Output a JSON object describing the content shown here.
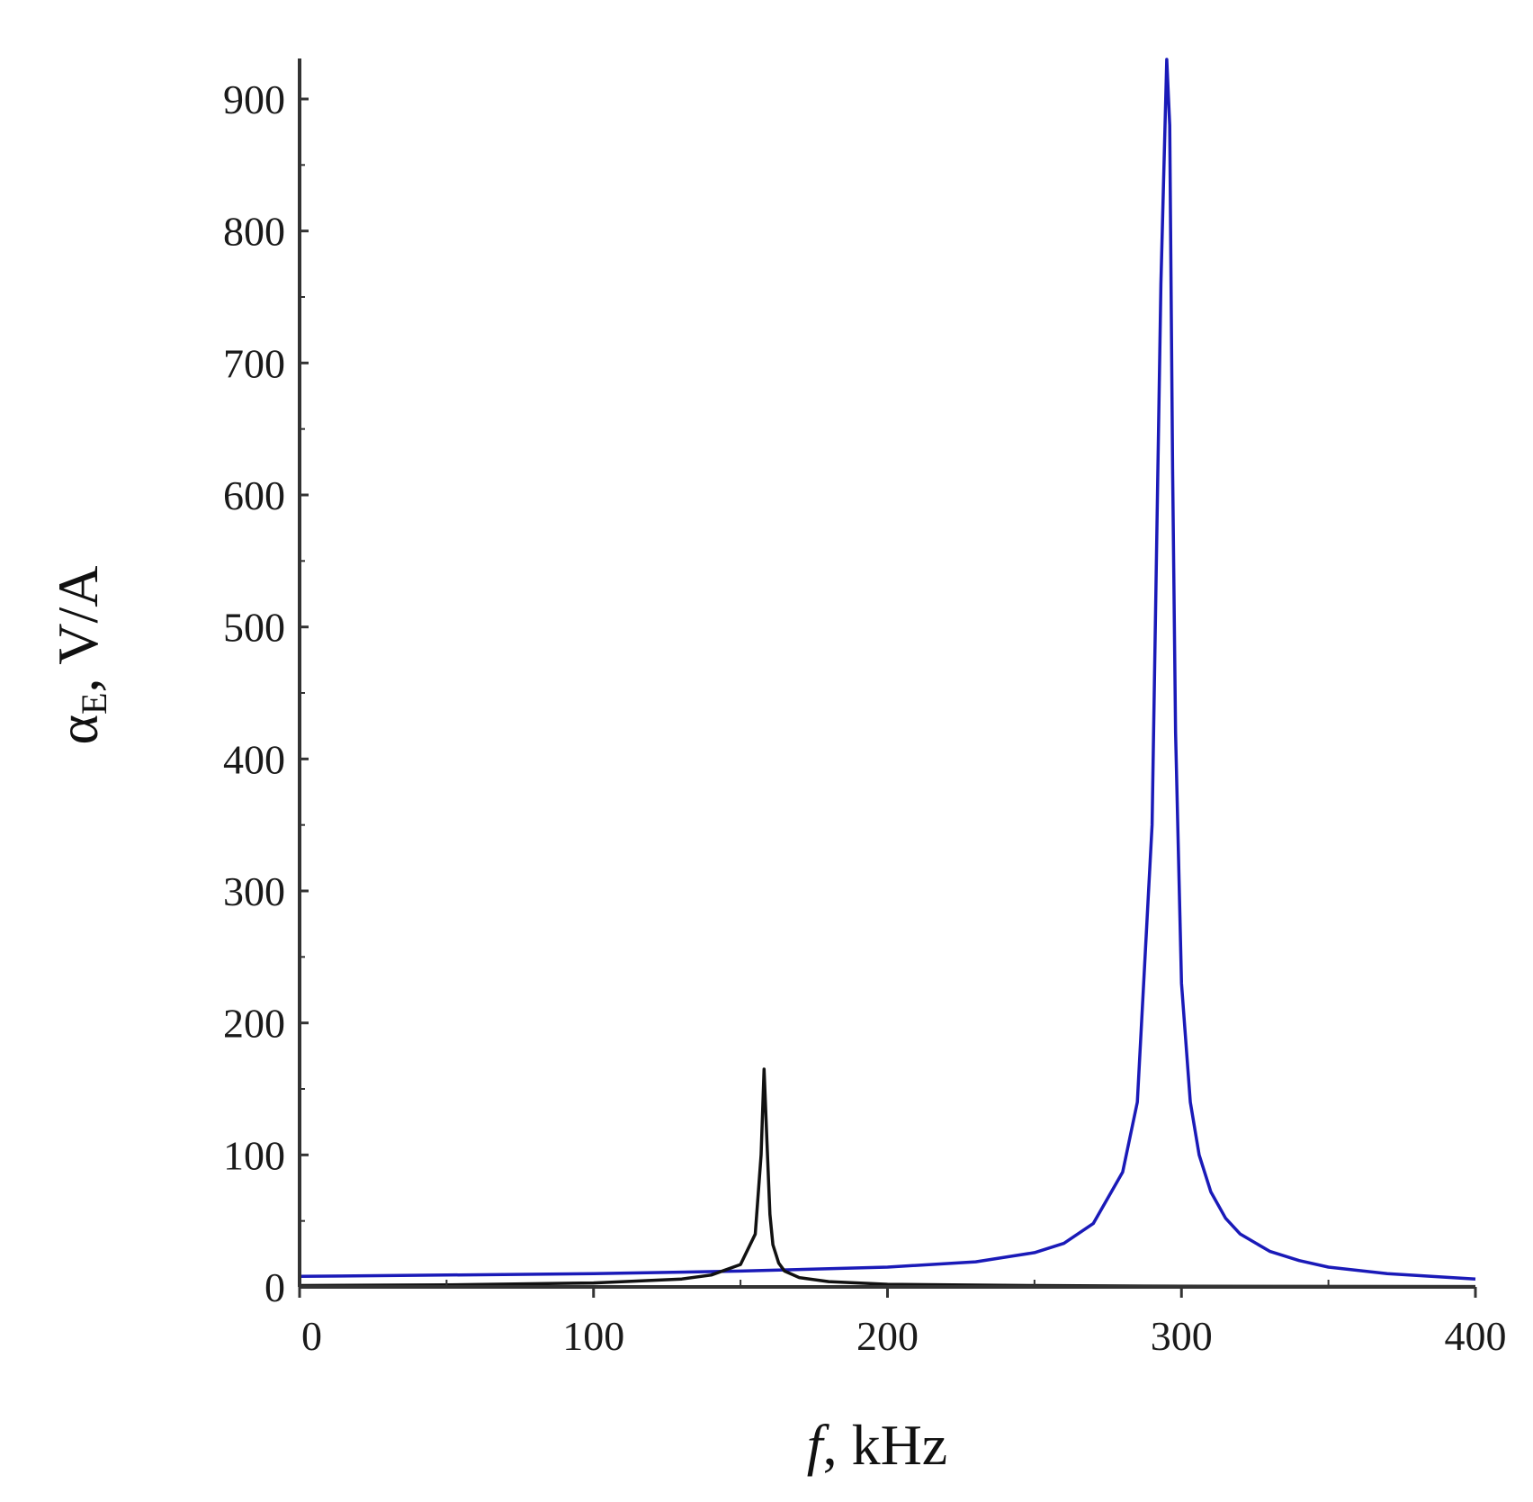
{
  "chart_data": {
    "type": "line",
    "title": "",
    "xlabel": {
      "italic": "f",
      "rest": ", kHz"
    },
    "ylabel": {
      "main": "α",
      "sub": "E",
      "rest": ", V/A"
    },
    "xlim": [
      0,
      400
    ],
    "ylim": [
      0,
      930
    ],
    "x_ticks": [
      0,
      100,
      200,
      300,
      400
    ],
    "y_ticks": [
      0,
      100,
      200,
      300,
      400,
      500,
      600,
      700,
      800,
      900
    ],
    "x_tick_labels": [
      "0",
      "100",
      "200",
      "300",
      "400"
    ],
    "y_tick_labels": [
      "0",
      "100",
      "200",
      "300",
      "400",
      "500",
      "600",
      "700",
      "800",
      "900"
    ],
    "grid": false,
    "legend": "none",
    "series": [
      {
        "color": "#1a1ab8",
        "x": [
          0,
          50,
          100,
          150,
          200,
          230,
          250,
          260,
          270,
          280,
          285,
          290,
          293,
          295,
          296,
          297,
          298,
          300,
          303,
          306,
          310,
          315,
          320,
          330,
          340,
          350,
          370,
          400
        ],
        "y": [
          8,
          9,
          10,
          12,
          15,
          19,
          26,
          33,
          48,
          87,
          140,
          350,
          760,
          930,
          880,
          620,
          420,
          230,
          140,
          100,
          72,
          52,
          40,
          27,
          20,
          15,
          10,
          6
        ]
      },
      {
        "color": "#111111",
        "x": [
          0,
          50,
          100,
          130,
          140,
          150,
          155,
          157,
          158,
          159,
          160,
          161,
          163,
          165,
          170,
          180,
          200,
          250,
          300,
          400
        ],
        "y": [
          1,
          1.5,
          3,
          6,
          9,
          17,
          40,
          100,
          165,
          110,
          55,
          32,
          18,
          12,
          7,
          4,
          2,
          1,
          0.5,
          0.3
        ]
      }
    ]
  }
}
